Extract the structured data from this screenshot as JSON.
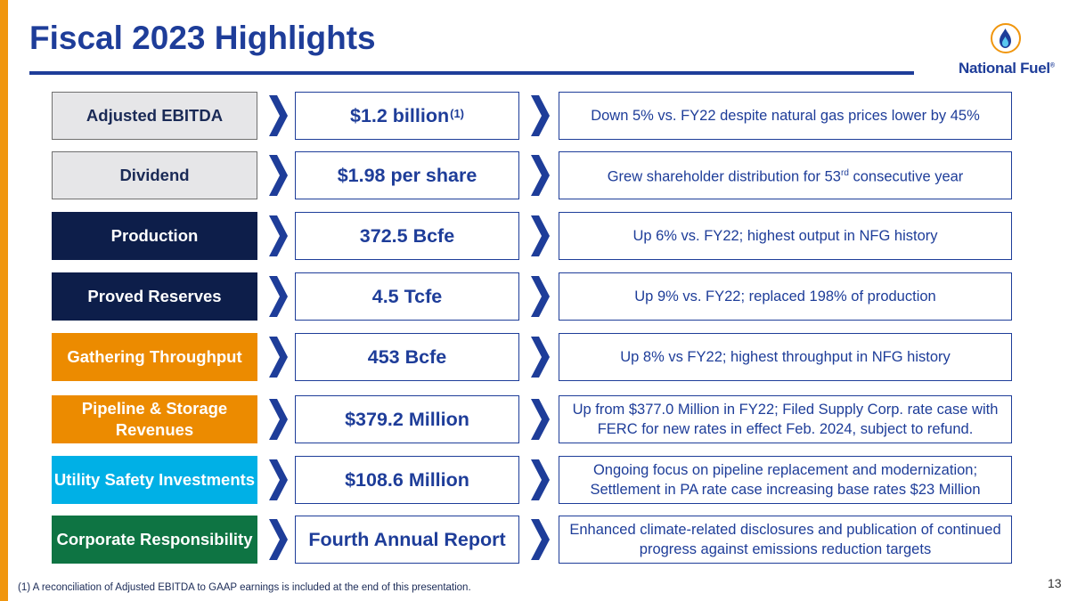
{
  "slide": {
    "title": "Fiscal 2023 Highlights",
    "page_number": "13",
    "logo_text": "National Fuel",
    "logo_mark": "®",
    "footnote": "(1)   A reconciliation of Adjusted EBITDA to GAAP earnings is included at the end of this presentation."
  },
  "rows": [
    {
      "label": "Adjusted EBITDA",
      "value": "$1.2 billion",
      "value_sup": "(1)",
      "desc": "Down 5% vs. FY22 despite natural gas prices lower by 45%",
      "color": "#e6e6e8"
    },
    {
      "label": "Dividend",
      "value": "$1.98 per share",
      "desc_a": "Grew shareholder distribution for 53",
      "desc_sup": "rd",
      "desc_b": " consecutive year",
      "color": "#e6e6e8"
    },
    {
      "label": "Production",
      "value": "372.5 Bcfe",
      "desc": "Up 6% vs. FY22; highest output in NFG history",
      "color": "#0d1e4a"
    },
    {
      "label": "Proved Reserves",
      "value": "4.5 Tcfe",
      "desc": "Up 9% vs. FY22; replaced 198% of production",
      "color": "#0d1e4a"
    },
    {
      "label": "Gathering Throughput",
      "value": "453 Bcfe",
      "desc": "Up 8% vs FY22; highest throughput in NFG history",
      "color": "#ec8b00"
    },
    {
      "label": "Pipeline & Storage Revenues",
      "value": "$379.2 Million",
      "desc": "Up from $377.0 Million in FY22; Filed Supply Corp. rate case with FERC for new rates in effect Feb. 2024, subject to refund.",
      "color": "#ec8b00"
    },
    {
      "label": "Utility Safety Investments",
      "value": "$108.6 Million",
      "desc": "Ongoing focus on pipeline replacement and modernization; Settlement in PA rate case increasing base rates $23 Million",
      "color": "#00b0e6"
    },
    {
      "label": "Corporate Responsibility",
      "value": "Fourth Annual Report",
      "desc": "Enhanced climate-related disclosures and publication of continued progress against emissions reduction targets",
      "color": "#0e7443"
    }
  ],
  "colors": {
    "accent_blue": "#1e3d99",
    "accent_orange": "#f0960e"
  },
  "icons": {
    "chevron": "chevron-right-icon",
    "logo": "flame-icon"
  }
}
